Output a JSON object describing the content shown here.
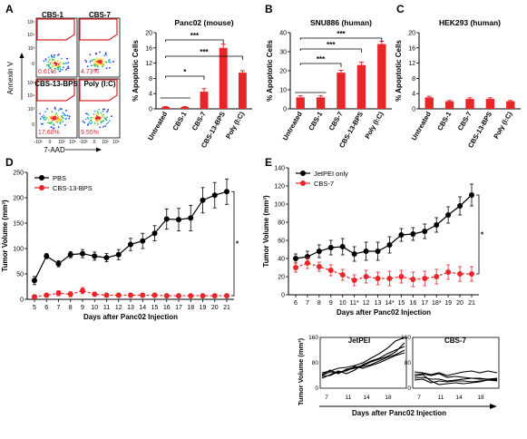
{
  "panel_letters": [
    "A",
    "B",
    "C",
    "D",
    "E"
  ],
  "panelA": {
    "flow_title_cbs1": "CBS-1",
    "flow_title_cbs7": "CBS-7",
    "flow_title_cbs13": "CBS-13-BPS",
    "flow_title_polyic": "Poly (I:C)",
    "pct_cbs1": "0.61%",
    "pct_cbs7": "4.73%",
    "pct_cbs13": "17.60%",
    "pct_polyic": "9.55%",
    "y_axis_label": "Annexin V",
    "x_axis_label": "7-AAD",
    "flow_tick_labels": [
      "10⁵",
      "10⁴",
      "10³",
      "0",
      "-10³",
      "10³",
      "10⁵"
    ]
  },
  "panelE_small": {
    "ylabel": "Tumor Volume (mm³)",
    "xlabel": "Days after Panc02 Injection",
    "left_title": "JetPEI",
    "right_title": "CBS-7",
    "yticks": [
      "160",
      "80",
      "0"
    ],
    "xticks": [
      "7",
      "11",
      "14",
      "18"
    ]
  },
  "chart_data": [
    {
      "panel": "A",
      "type": "bar",
      "title": "Panc02 (mouse)",
      "ylabel": "% Apoptotic Cells",
      "ylim": [
        0,
        20
      ],
      "yticks": [
        0,
        4,
        8,
        12,
        16,
        20
      ],
      "categories": [
        "Untreated",
        "CBS-1",
        "CBS-7",
        "CBS-13-BPS",
        "Poly (I:C)"
      ],
      "values": [
        0.5,
        0.5,
        4.5,
        16,
        9.5
      ],
      "errors": [
        0.1,
        0.1,
        0.8,
        1.0,
        0.5
      ],
      "significance": [
        "*",
        "***",
        "***"
      ]
    },
    {
      "panel": "B",
      "type": "bar",
      "title": "SNU886 (human)",
      "ylabel": "% Apoptotic Cells",
      "ylim": [
        0,
        40
      ],
      "yticks": [
        0,
        10,
        20,
        30,
        40
      ],
      "categories": [
        "Untreated",
        "CBS-1",
        "CBS-7",
        "CBS-13-BPS",
        "Poly (I:C)"
      ],
      "values": [
        6,
        6,
        19,
        23,
        34
      ],
      "errors": [
        0.8,
        0.8,
        1.2,
        1.5,
        1.5
      ],
      "significance": [
        "***",
        "***",
        "***"
      ]
    },
    {
      "panel": "C",
      "type": "bar",
      "title": "HEK293 (human)",
      "ylabel": "% Apoptotic Cells",
      "ylim": [
        0,
        20
      ],
      "yticks": [
        0,
        4,
        8,
        12,
        16,
        20
      ],
      "categories": [
        "Untreated",
        "CBS-1",
        "CBS-7",
        "CBS-13-BPS",
        "Poly (I:C)"
      ],
      "values": [
        3,
        2,
        2.6,
        2.6,
        2
      ],
      "errors": [
        0.3,
        0.2,
        0.3,
        0.3,
        0.2
      ]
    },
    {
      "panel": "D",
      "type": "line",
      "xlabel": "Days after Panc02 Injection",
      "ylabel": "Tumor Volume (mm³)",
      "ylim": [
        0,
        250
      ],
      "yticks": [
        0,
        50,
        100,
        150,
        200,
        250
      ],
      "x": [
        5,
        6,
        7,
        8,
        9,
        10,
        11,
        12,
        13,
        14,
        15,
        16,
        17,
        18,
        19,
        20,
        21
      ],
      "significance": "*",
      "legend_position": "top-left",
      "series": [
        {
          "name": "PBS",
          "color": "#000000",
          "values": [
            37,
            85,
            70,
            88,
            90,
            85,
            82,
            88,
            108,
            115,
            130,
            158,
            157,
            160,
            195,
            205,
            212
          ],
          "errors": [
            8,
            5,
            6,
            6,
            8,
            8,
            8,
            10,
            12,
            15,
            15,
            20,
            22,
            25,
            25,
            25,
            25
          ]
        },
        {
          "name": "CBS-13-BPS",
          "color": "#e8262a",
          "values": [
            5,
            8,
            12,
            10,
            17,
            10,
            8,
            8,
            8,
            8,
            8,
            7,
            7,
            7,
            7,
            7,
            7
          ],
          "errors": [
            3,
            4,
            5,
            5,
            6,
            4,
            4,
            4,
            4,
            4,
            4,
            3,
            3,
            3,
            3,
            3,
            3
          ]
        }
      ]
    },
    {
      "panel": "E",
      "type": "line",
      "xlabel": "Days after Panc02 Injection",
      "ylabel": "Tumor Volume (mm³)",
      "ylim": [
        0,
        140
      ],
      "yticks": [
        0,
        20,
        40,
        60,
        80,
        100,
        120,
        140
      ],
      "categories": [
        "6",
        "7",
        "8",
        "9",
        "10",
        "11*",
        "12",
        "13",
        "14*",
        "15",
        "16",
        "17",
        "18*",
        "19",
        "20",
        "21"
      ],
      "significance": "*",
      "legend_position": "top-left",
      "series": [
        {
          "name": "JetPEI only",
          "color": "#000000",
          "values": [
            40,
            42,
            48,
            52,
            53,
            45,
            48,
            48,
            55,
            66,
            67,
            70,
            77,
            88,
            98,
            110
          ],
          "errors": [
            5,
            6,
            7,
            8,
            9,
            8,
            10,
            10,
            9,
            7,
            7,
            8,
            8,
            9,
            10,
            12
          ]
        },
        {
          "name": "CBS-7",
          "color": "#e8262a",
          "values": [
            30,
            35,
            31,
            27,
            22,
            16,
            20,
            18,
            18,
            20,
            17,
            18,
            20,
            25,
            23,
            23
          ],
          "errors": [
            5,
            6,
            5,
            6,
            6,
            6,
            7,
            7,
            8,
            7,
            8,
            8,
            8,
            8,
            8,
            8
          ]
        }
      ]
    }
  ]
}
